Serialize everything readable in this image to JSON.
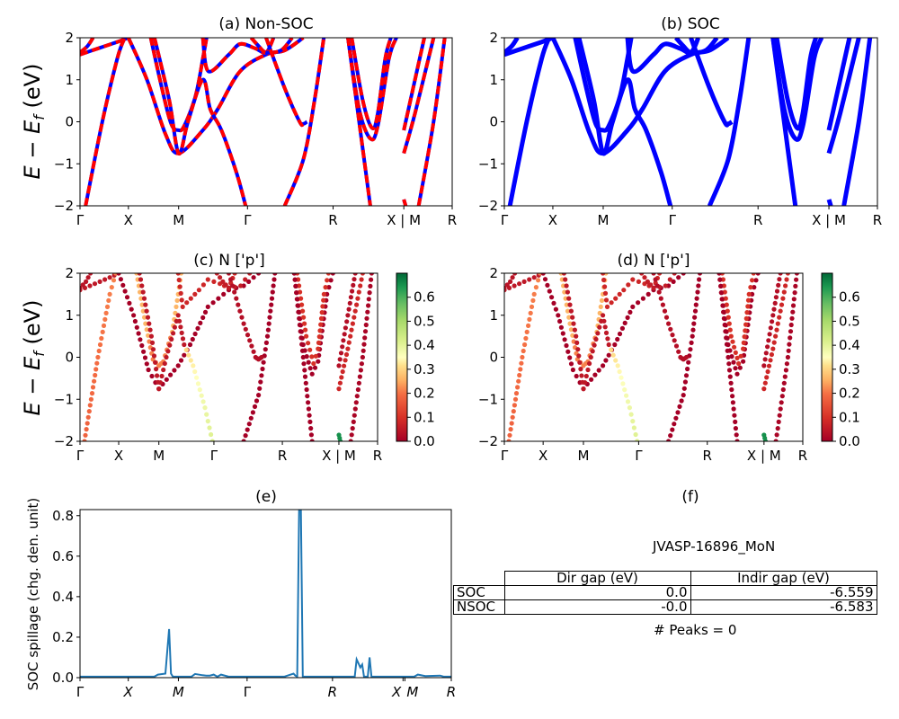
{
  "figure": {
    "ylabel_band": "E − E_f (eV)",
    "kpath_labels": [
      "Γ",
      "X",
      "M",
      "Γ",
      "R",
      "X | M",
      "R"
    ]
  },
  "chart_data": [
    {
      "id": "a",
      "type": "line",
      "title": "(a) Non-SOC",
      "ylabel": "E − E_f (eV)",
      "ylim": [
        -2,
        2
      ],
      "yticks": [
        "2",
        "1",
        "0",
        "−1",
        "−2"
      ],
      "xticks": [
        "Γ",
        "X",
        "M",
        "Γ",
        "R",
        "X | M",
        "R"
      ],
      "xtick_pos": [
        0,
        0.13,
        0.265,
        0.45,
        0.68,
        0.87,
        1.0
      ],
      "style": "red dashed over blue",
      "colors": {
        "primary": "#ff0000",
        "secondary": "#0000ff"
      },
      "bands": [
        [
          [
            0,
            1.6
          ],
          [
            0.05,
            1.75
          ],
          [
            0.1,
            1.9
          ],
          [
            0.13,
            2
          ]
        ],
        [
          [
            0,
            1.65
          ],
          [
            0.02,
            1.8
          ],
          [
            0.035,
            2
          ]
        ],
        [
          [
            0.015,
            -2
          ],
          [
            0.06,
            0
          ],
          [
            0.1,
            1.5
          ],
          [
            0.12,
            2
          ]
        ],
        [
          [
            0.13,
            2
          ],
          [
            0.18,
            1.0
          ],
          [
            0.23,
            -0.3
          ],
          [
            0.265,
            -0.75
          ],
          [
            0.33,
            -0.2
          ],
          [
            0.37,
            0.3
          ],
          [
            0.43,
            1.2
          ],
          [
            0.5,
            1.6
          ],
          [
            0.55,
            1.7
          ],
          [
            0.6,
            2
          ]
        ],
        [
          [
            0.19,
            2
          ],
          [
            0.22,
            0.8
          ],
          [
            0.245,
            -0.05
          ],
          [
            0.265,
            -0.2
          ],
          [
            0.28,
            -0.1
          ],
          [
            0.31,
            0.6
          ],
          [
            0.33,
            1.5
          ],
          [
            0.34,
            2
          ]
        ],
        [
          [
            0.2,
            2
          ],
          [
            0.24,
            0.5
          ],
          [
            0.265,
            -0.75
          ],
          [
            0.29,
            0.0
          ],
          [
            0.33,
            1.0
          ],
          [
            0.35,
            0.3
          ],
          [
            0.38,
            -0.2
          ],
          [
            0.42,
            -1.2
          ],
          [
            0.445,
            -2
          ]
        ],
        [
          [
            0.33,
            2
          ],
          [
            0.345,
            1.2
          ],
          [
            0.4,
            1.6
          ],
          [
            0.43,
            1.85
          ],
          [
            0.47,
            1.75
          ],
          [
            0.5,
            1.65
          ],
          [
            0.52,
            2
          ]
        ],
        [
          [
            0.46,
            2
          ],
          [
            0.48,
            1.8
          ],
          [
            0.5,
            1.65
          ],
          [
            0.54,
            1.7
          ],
          [
            0.57,
            2
          ]
        ],
        [
          [
            0.55,
            -2
          ],
          [
            0.6,
            -0.9
          ],
          [
            0.63,
            0.5
          ],
          [
            0.655,
            2
          ]
        ],
        [
          [
            0.5,
            2
          ],
          [
            0.55,
            0.8
          ],
          [
            0.59,
            0
          ],
          [
            0.6,
            -0.05
          ],
          [
            0.61,
            0
          ]
        ],
        [
          [
            0.72,
            2
          ],
          [
            0.75,
            0.3
          ],
          [
            0.78,
            -0.4
          ],
          [
            0.8,
            -0.1
          ],
          [
            0.83,
            1.5
          ],
          [
            0.85,
            2
          ]
        ],
        [
          [
            0.73,
            2
          ],
          [
            0.76,
            0.5
          ],
          [
            0.785,
            -0.15
          ],
          [
            0.8,
            0.2
          ],
          [
            0.82,
            1.5
          ],
          [
            0.835,
            2
          ]
        ],
        [
          [
            0.72,
            2
          ],
          [
            0.75,
            0
          ],
          [
            0.78,
            -2
          ]
        ],
        [
          [
            0.87,
            -0.2
          ],
          [
            0.9,
            1.0
          ],
          [
            0.925,
            2
          ]
        ],
        [
          [
            0.87,
            -0.75
          ],
          [
            0.9,
            0.2
          ],
          [
            0.95,
            2
          ]
        ],
        [
          [
            0.87,
            -1.85
          ],
          [
            0.875,
            -2
          ]
        ],
        [
          [
            0.91,
            -2
          ],
          [
            0.95,
            0
          ],
          [
            0.98,
            2
          ]
        ]
      ]
    },
    {
      "id": "b",
      "type": "line",
      "title": "(b) SOC",
      "ylabel": "",
      "ylim": [
        -2,
        2
      ],
      "yticks": [
        "2",
        "1",
        "0",
        "−1",
        "−2"
      ],
      "xticks": [
        "Γ",
        "X",
        "M",
        "Γ",
        "R",
        "X | M",
        "R"
      ],
      "xtick_pos": [
        0,
        0.13,
        0.265,
        0.45,
        0.68,
        0.87,
        1.0
      ],
      "style": "solid blue",
      "colors": {
        "primary": "#0000ff"
      }
    },
    {
      "id": "c",
      "type": "scatter",
      "title": "(c)  N ['p']",
      "ylabel": "E − E_f (eV)",
      "ylim": [
        -2,
        2
      ],
      "yticks": [
        "2",
        "1",
        "0",
        "−1",
        "−2"
      ],
      "xticks": [
        "Γ",
        "X",
        "M",
        "Γ",
        "R",
        "X | M",
        "R"
      ],
      "colorbar": {
        "min": 0.0,
        "max": 0.7,
        "ticks": [
          "0.0",
          "0.1",
          "0.2",
          "0.3",
          "0.4",
          "0.5",
          "0.6"
        ],
        "cmap": "RdYlGn"
      }
    },
    {
      "id": "d",
      "type": "scatter",
      "title": "(d) N ['p']",
      "ylabel": "",
      "ylim": [
        -2,
        2
      ],
      "yticks": [
        "2",
        "1",
        "0",
        "−1",
        "−2"
      ],
      "xticks": [
        "Γ",
        "X",
        "M",
        "Γ",
        "R",
        "X | M",
        "R"
      ],
      "colorbar": {
        "min": 0.0,
        "max": 0.7,
        "ticks": [
          "0.0",
          "0.1",
          "0.2",
          "0.3",
          "0.4",
          "0.5",
          "0.6"
        ],
        "cmap": "RdYlGn"
      }
    },
    {
      "id": "e",
      "type": "line",
      "title": "(e)",
      "ylabel": "SOC spillage (chg. den. unit)",
      "ylim": [
        0,
        0.83
      ],
      "yticks": [
        "0.8",
        "0.6",
        "0.4",
        "0.2",
        "0.0"
      ],
      "ytick_vals": [
        0.8,
        0.6,
        0.4,
        0.2,
        0.0
      ],
      "xticks": [
        "Γ",
        "X",
        "M",
        "Γ",
        "R",
        "X",
        "M",
        "R"
      ],
      "color": "#1f77b4",
      "x": [
        0,
        0.08,
        0.2,
        0.21,
        0.23,
        0.24,
        0.245,
        0.25,
        0.255,
        0.3,
        0.31,
        0.33,
        0.34,
        0.35,
        0.36,
        0.37,
        0.38,
        0.4,
        0.55,
        0.575,
        0.58,
        0.585,
        0.59,
        0.595,
        0.6,
        0.605,
        0.7,
        0.74,
        0.745,
        0.75,
        0.755,
        0.76,
        0.765,
        0.77,
        0.775,
        0.78,
        0.785,
        0.79,
        0.795,
        0.8,
        0.8,
        0.9,
        0.91,
        0.93,
        0.97,
        0.98,
        1.0
      ],
      "y": [
        0.005,
        0.005,
        0.005,
        0.015,
        0.02,
        0.24,
        0.02,
        0.005,
        0.005,
        0.005,
        0.018,
        0.012,
        0.01,
        0.01,
        0.015,
        0.005,
        0.015,
        0.005,
        0.005,
        0.02,
        0.01,
        0.005,
        0.83,
        0.83,
        0.005,
        0.005,
        0.005,
        0.005,
        0.09,
        0.07,
        0.05,
        0.065,
        0.005,
        0.005,
        0.005,
        0.1,
        0.005,
        0.005,
        0.005,
        0.005,
        0.005,
        0.005,
        0.015,
        0.008,
        0.01,
        0.005,
        0.005
      ]
    }
  ],
  "info_panel": {
    "title": "(f)",
    "material": "JVASP-16896_MoN",
    "table": {
      "columns": [
        "Dir gap (eV)",
        "Indir gap (eV)"
      ],
      "rows": [
        {
          "label": "SOC",
          "dir": "0.0",
          "indir": "-6.559"
        },
        {
          "label": "NSOC",
          "dir": "-0.0",
          "indir": "-6.583"
        }
      ]
    },
    "peaks": "# Peaks = 0"
  }
}
